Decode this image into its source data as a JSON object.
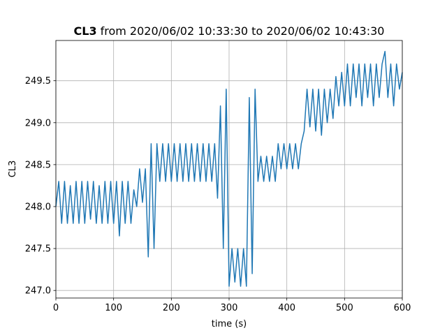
{
  "chart_data": {
    "type": "line",
    "title": {
      "name": "CL3",
      "text": "from 2020/06/02 10:33:30 to 2020/06/02 10:43:30"
    },
    "x_label": "time (s)",
    "y_label": "CL3",
    "x": [
      0,
      5,
      10,
      15,
      20,
      25,
      30,
      35,
      40,
      45,
      50,
      55,
      60,
      65,
      70,
      75,
      80,
      85,
      90,
      95,
      100,
      105,
      110,
      115,
      120,
      125,
      130,
      135,
      140,
      145,
      150,
      155,
      160,
      165,
      170,
      175,
      180,
      185,
      190,
      195,
      200,
      205,
      210,
      215,
      220,
      225,
      230,
      235,
      240,
      245,
      250,
      255,
      260,
      265,
      270,
      275,
      280,
      285,
      290,
      295,
      300,
      305,
      310,
      315,
      320,
      325,
      330,
      335,
      340,
      345,
      350,
      355,
      360,
      365,
      370,
      375,
      380,
      385,
      390,
      395,
      400,
      405,
      410,
      415,
      420,
      425,
      430,
      435,
      440,
      445,
      450,
      455,
      460,
      465,
      470,
      475,
      480,
      485,
      490,
      495,
      500,
      505,
      510,
      515,
      520,
      525,
      530,
      535,
      540,
      545,
      550,
      555,
      560,
      565,
      570,
      575,
      580,
      585,
      590,
      595,
      600
    ],
    "series": [
      {
        "name": "CL3",
        "color": "#1f77b4",
        "values": [
          248.0,
          248.3,
          247.8,
          248.3,
          247.8,
          248.25,
          247.8,
          248.3,
          247.8,
          248.3,
          247.8,
          248.3,
          247.85,
          248.3,
          247.8,
          248.25,
          247.8,
          248.3,
          247.8,
          248.3,
          247.8,
          248.3,
          247.65,
          248.3,
          247.8,
          248.3,
          247.8,
          248.2,
          248.0,
          248.45,
          248.05,
          248.45,
          247.4,
          248.75,
          247.5,
          248.75,
          248.3,
          248.75,
          248.3,
          248.75,
          248.3,
          248.75,
          248.3,
          248.75,
          248.3,
          248.75,
          248.3,
          248.75,
          248.3,
          248.75,
          248.3,
          248.75,
          248.3,
          248.75,
          248.3,
          248.75,
          248.1,
          249.2,
          247.5,
          249.4,
          247.05,
          247.5,
          247.1,
          247.5,
          247.05,
          247.5,
          247.05,
          249.3,
          247.2,
          249.4,
          248.3,
          248.6,
          248.3,
          248.6,
          248.3,
          248.6,
          248.3,
          248.75,
          248.45,
          248.75,
          248.45,
          248.75,
          248.45,
          248.75,
          248.45,
          248.75,
          248.9,
          249.4,
          248.95,
          249.4,
          248.9,
          249.4,
          248.85,
          249.4,
          249.0,
          249.4,
          249.05,
          249.55,
          249.2,
          249.6,
          249.2,
          249.7,
          249.2,
          249.7,
          249.3,
          249.7,
          249.2,
          249.7,
          249.3,
          249.7,
          249.2,
          249.7,
          249.3,
          249.7,
          249.85,
          249.3,
          249.7,
          249.2,
          249.7,
          249.4,
          249.6
        ]
      }
    ],
    "xlim": [
      0,
      600
    ],
    "xticks": [
      0,
      100,
      200,
      300,
      400,
      500,
      600
    ],
    "ylim": [
      246.91,
      249.98
    ],
    "yticks": [
      {
        "value": 247,
        "label": "247.0"
      },
      247.5,
      {
        "value": 248,
        "label": "248.0"
      },
      248.5,
      {
        "value": 249,
        "label": "249.0"
      },
      249.5
    ],
    "grid": true
  }
}
